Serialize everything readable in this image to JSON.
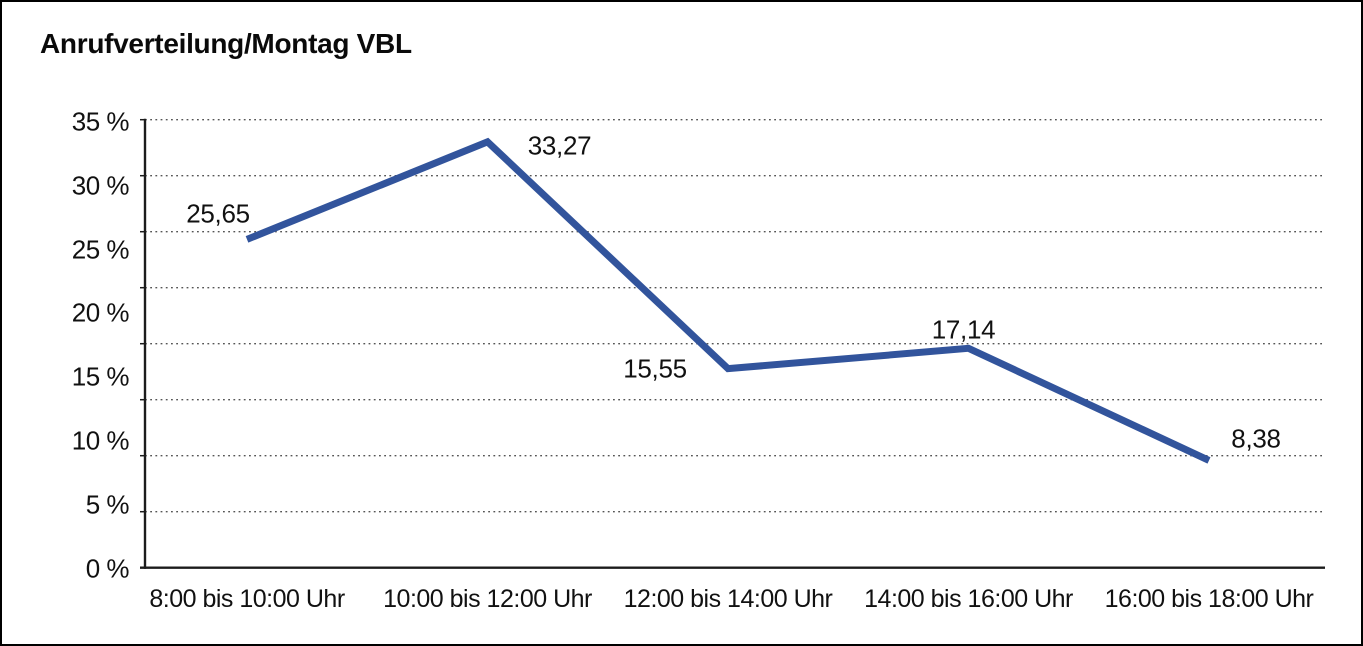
{
  "title": "Anrufverteilung/Montag VBL",
  "chart_data": {
    "type": "line",
    "title": "Anrufverteilung/Montag VBL",
    "categories": [
      "8:00 bis 10:00 Uhr",
      "10:00 bis 12:00 Uhr",
      "12:00 bis 14:00 Uhr",
      "14:00 bis 16:00 Uhr",
      "16:00 bis 18:00 Uhr"
    ],
    "series": [
      {
        "name": "Anrufverteilung Montag VBL",
        "values": [
          25.65,
          33.27,
          15.55,
          17.14,
          8.38
        ],
        "point_labels": [
          "25,65",
          "33,27",
          "15,55",
          "17,14",
          "8,38"
        ]
      }
    ],
    "xlabel": "",
    "ylabel": "",
    "ylim": [
      0,
      35
    ],
    "y_tick_labels": [
      "35 %",
      "30 %",
      "25 %",
      "20 %",
      "15 %",
      "10 %",
      "5 %",
      "0 %"
    ],
    "grid": "horizontal-dotted",
    "legend_position": "none",
    "line_color": "#32549c",
    "axis_color": "#1c1c1c",
    "gridline_color": "#555555",
    "text_color": "#111111"
  }
}
